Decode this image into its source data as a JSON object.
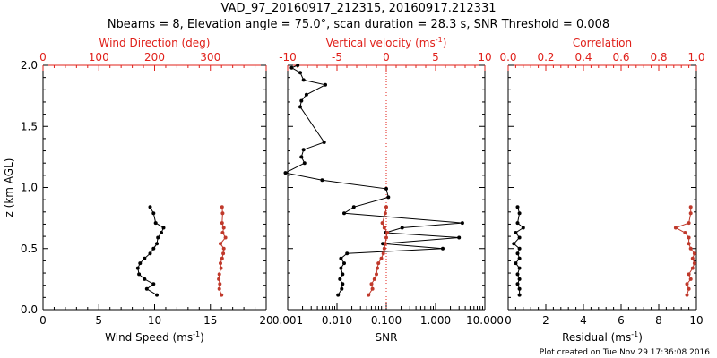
{
  "title_line1": "VAD_97_20160917_212315, 20160917.212331",
  "title_line2": "Nbeams = 8, Elevation angle = 75.0°, scan duration = 28.3 s, SNR Threshold = 0.008",
  "footer": "Plot created on Tue Nov 29 17:36:08 2016",
  "colors": {
    "axis": "#000000",
    "red": "#e0201a",
    "red_series": "#c0392b",
    "black_series": "#000000"
  },
  "chart_data": [
    {
      "type": "line",
      "panel": "left",
      "ylabel": "z (km AGL)",
      "ylim": [
        0,
        2
      ],
      "yticks": [
        "0.0",
        "0.5",
        "1.0",
        "1.5",
        "2.0"
      ],
      "bottom_axis": {
        "label": "Wind Speed (ms",
        "label_sup": "-1",
        "label_end": ")",
        "lim": [
          0,
          20
        ],
        "ticks": [
          "0",
          "5",
          "10",
          "15",
          "20"
        ]
      },
      "top_axis": {
        "label": "Wind Direction (deg)",
        "lim": [
          0,
          400
        ],
        "ticks": [
          "0",
          "100",
          "200",
          "300"
        ],
        "color": "red"
      },
      "series": [
        {
          "axis": "bottom",
          "color": "black",
          "x": [
            10.2,
            9.3,
            9.9,
            9.1,
            8.6,
            8.5,
            8.7,
            9.1,
            9.6,
            9.9,
            10.2,
            10.3,
            10.6,
            10.8,
            10.1,
            9.9,
            9.6
          ],
          "y": [
            0.12,
            0.17,
            0.21,
            0.25,
            0.29,
            0.34,
            0.38,
            0.42,
            0.46,
            0.5,
            0.54,
            0.59,
            0.63,
            0.67,
            0.71,
            0.79,
            0.84
          ]
        },
        {
          "axis": "top",
          "color": "red",
          "x": [
            320,
            316,
            317,
            315,
            316,
            319,
            318,
            321,
            323,
            324,
            318,
            327,
            322,
            324,
            321,
            322,
            321
          ],
          "y": [
            0.12,
            0.17,
            0.21,
            0.25,
            0.29,
            0.34,
            0.38,
            0.42,
            0.46,
            0.5,
            0.54,
            0.59,
            0.63,
            0.67,
            0.71,
            0.79,
            0.84
          ]
        }
      ]
    },
    {
      "type": "line",
      "panel": "middle",
      "ylim": [
        0,
        2
      ],
      "bottom_axis": {
        "label": "SNR",
        "scale": "log",
        "lim": [
          0.001,
          10
        ],
        "ticks": [
          "0.001",
          "0.010",
          "0.100",
          "1.000",
          "10.000"
        ]
      },
      "top_axis": {
        "label": "Vertical velocity (ms",
        "label_sup": "-1",
        "label_end": ")",
        "lim": [
          -10,
          10
        ],
        "ticks": [
          "-10",
          "-5",
          "0",
          "5",
          "10"
        ],
        "color": "red",
        "zero_line": 0
      },
      "series": [
        {
          "axis": "bottom",
          "color": "black",
          "x": [
            0.0105,
            0.0125,
            0.013,
            0.0115,
            0.013,
            0.012,
            0.014,
            0.012,
            0.016,
            1.4,
            0.085,
            3.0,
            0.097,
            0.21,
            3.5,
            0.014,
            0.022,
            0.11,
            0.1,
            0.005,
            0.0009,
            0.0022,
            0.0019,
            0.0021,
            0.0055,
            0.0018,
            0.0019,
            0.0024,
            0.0058,
            0.0021,
            0.0018,
            0.0012,
            0.0016
          ],
          "y": [
            0.12,
            0.17,
            0.21,
            0.25,
            0.29,
            0.34,
            0.38,
            0.42,
            0.46,
            0.5,
            0.54,
            0.59,
            0.63,
            0.67,
            0.71,
            0.79,
            0.84,
            0.92,
            0.99,
            1.06,
            1.12,
            1.2,
            1.25,
            1.31,
            1.37,
            1.66,
            1.71,
            1.76,
            1.84,
            1.88,
            1.94,
            1.98,
            2.0
          ]
        },
        {
          "axis": "top",
          "color": "red",
          "x": [
            -1.8,
            -1.4,
            -1.5,
            -1.2,
            -1.0,
            -0.9,
            -0.8,
            -0.5,
            -0.3,
            -0.2,
            -0.1,
            0.0,
            0.1,
            -0.2,
            -0.4,
            -0.1,
            0.0
          ],
          "y": [
            0.12,
            0.17,
            0.21,
            0.25,
            0.29,
            0.34,
            0.38,
            0.42,
            0.46,
            0.5,
            0.54,
            0.59,
            0.63,
            0.67,
            0.71,
            0.79,
            0.84
          ]
        }
      ]
    },
    {
      "type": "line",
      "panel": "right",
      "ylim": [
        0,
        2
      ],
      "bottom_axis": {
        "label": "Residual (ms",
        "label_sup": "-1",
        "label_end": ")",
        "lim": [
          0,
          10
        ],
        "ticks": [
          "0",
          "2",
          "4",
          "6",
          "8",
          "10"
        ]
      },
      "top_axis": {
        "label": "Correlation",
        "lim": [
          0,
          1
        ],
        "ticks": [
          "0.0",
          "0.2",
          "0.4",
          "0.6",
          "0.8",
          "1.0"
        ],
        "color": "red"
      },
      "series": [
        {
          "axis": "bottom",
          "color": "black",
          "x": [
            0.6,
            0.6,
            0.5,
            0.6,
            0.5,
            0.6,
            0.4,
            0.6,
            0.5,
            0.6,
            0.3,
            0.6,
            0.4,
            0.8,
            0.5,
            0.6,
            0.5
          ],
          "y": [
            0.12,
            0.17,
            0.21,
            0.25,
            0.29,
            0.34,
            0.38,
            0.42,
            0.46,
            0.5,
            0.54,
            0.59,
            0.63,
            0.67,
            0.71,
            0.79,
            0.84
          ]
        },
        {
          "axis": "top",
          "color": "red",
          "x": [
            0.95,
            0.96,
            0.95,
            0.97,
            0.96,
            0.98,
            0.99,
            0.98,
            0.99,
            0.97,
            0.96,
            0.96,
            0.94,
            0.89,
            0.96,
            0.97,
            0.97
          ],
          "y": [
            0.12,
            0.17,
            0.21,
            0.25,
            0.29,
            0.34,
            0.38,
            0.42,
            0.46,
            0.5,
            0.54,
            0.59,
            0.63,
            0.67,
            0.71,
            0.79,
            0.84
          ]
        }
      ]
    }
  ]
}
